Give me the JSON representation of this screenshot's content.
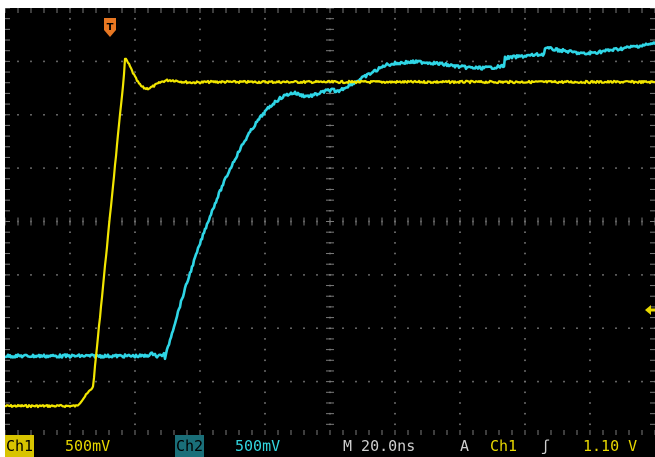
{
  "screen": {
    "trigger_marker": {
      "label": "T",
      "color": "#e87722"
    },
    "trigger_level_marker": {
      "color": "#e8d800"
    },
    "grid": {
      "divisions_x": 10,
      "divisions_y": 8,
      "minor_per_div": 5,
      "color": "#7a7a7a"
    },
    "traces": [
      {
        "name": "Ch1",
        "color": "#f2e600"
      },
      {
        "name": "Ch2",
        "color": "#2fd6e6"
      }
    ]
  },
  "status": {
    "ch1_tag": "Ch1",
    "ch1_scale": "500mV",
    "ch2_tag": "Ch2",
    "ch2_scale": "500mV",
    "timebase": "M 20.0ns",
    "trigger_mode": "A",
    "trigger_source": "Ch1",
    "trigger_slope": "ʃ",
    "trigger_level": "1.10 V"
  }
}
